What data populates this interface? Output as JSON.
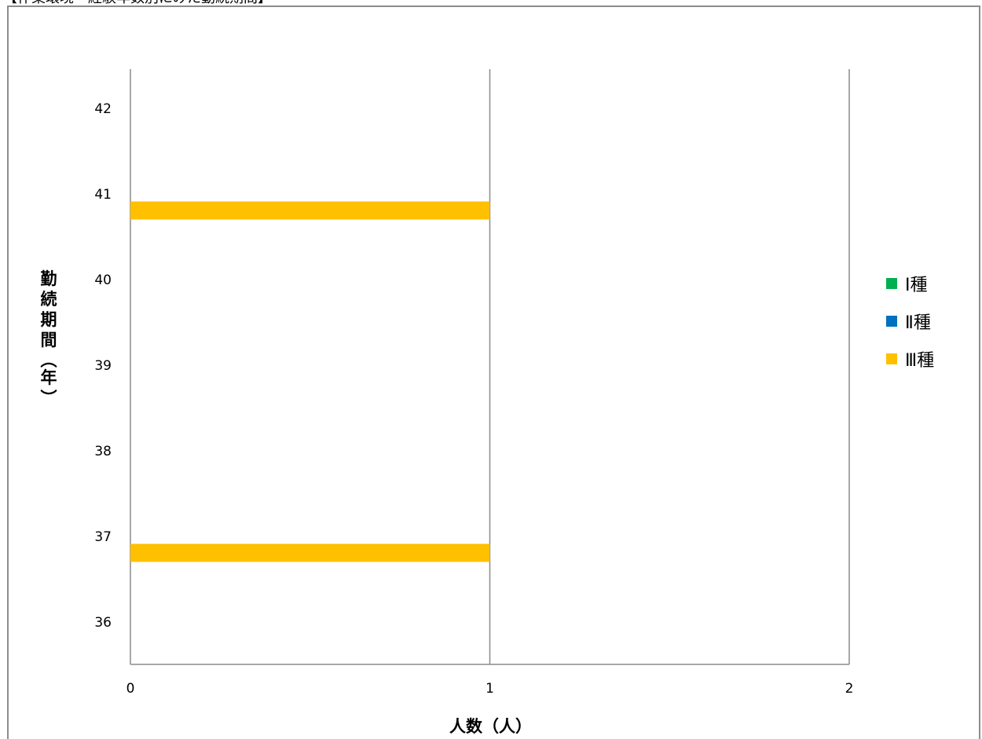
{
  "header": {
    "text": "【作業環境・経験年数別にみた勤続期間】"
  },
  "chart_data": {
    "type": "bar",
    "orientation": "horizontal",
    "xlabel": "人数（人）",
    "ylabel": "勤続期間（年）",
    "xlim": [
      0,
      2
    ],
    "x_ticks": [
      "0",
      "1",
      "2"
    ],
    "y_categories": [
      "36",
      "37",
      "38",
      "39",
      "40",
      "41",
      "42"
    ],
    "grid": "vertical",
    "legend_position": "right",
    "series": [
      {
        "name": "Ⅰ種",
        "color": "#00b050",
        "values": [
          0,
          0,
          0,
          0,
          0,
          0,
          0
        ]
      },
      {
        "name": "Ⅱ種",
        "color": "#0070c0",
        "values": [
          0,
          0,
          0,
          0,
          0,
          0,
          0
        ]
      },
      {
        "name": "Ⅲ種",
        "color": "#ffc000",
        "values": [
          0,
          1,
          0,
          0,
          0,
          1,
          0
        ]
      }
    ]
  }
}
